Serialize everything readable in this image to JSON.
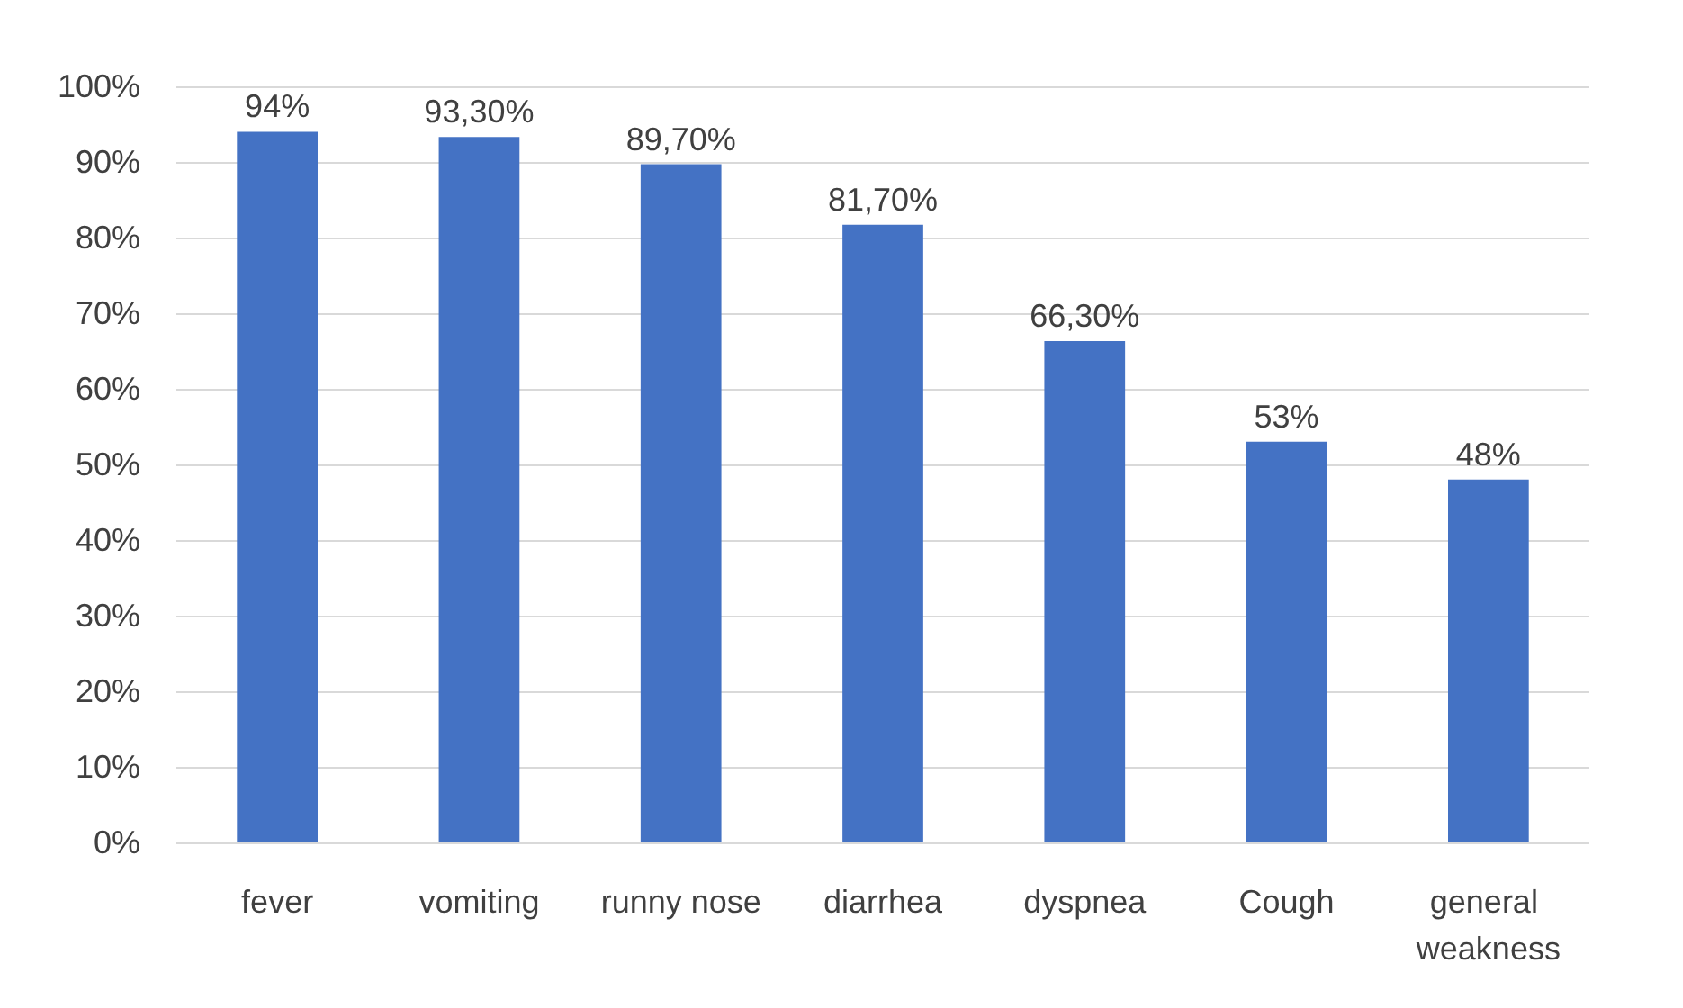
{
  "chart_data": {
    "type": "bar",
    "categories": [
      "fever",
      "vomiting",
      "runny nose",
      "diarrhea",
      "dyspnea",
      "Cough",
      "general weakness"
    ],
    "values": [
      94,
      93.3,
      89.7,
      81.7,
      66.3,
      53,
      48
    ],
    "value_labels": [
      "94%",
      "93,30%",
      "89,70%",
      "81,70%",
      "66,30%",
      "53%",
      "48%"
    ],
    "color": "#4472c4",
    "ylim": [
      0,
      100
    ],
    "yticks": [
      {
        "value": 0,
        "label": "0%"
      },
      {
        "value": 10,
        "label": "10%"
      },
      {
        "value": 20,
        "label": "20%"
      },
      {
        "value": 30,
        "label": "30%"
      },
      {
        "value": 40,
        "label": "40%"
      },
      {
        "value": 50,
        "label": "50%"
      },
      {
        "value": 60,
        "label": "60%"
      },
      {
        "value": 70,
        "label": "70%"
      },
      {
        "value": 80,
        "label": "80%"
      },
      {
        "value": 90,
        "label": "90%"
      },
      {
        "value": 100,
        "label": "100%"
      }
    ],
    "grid": "y"
  }
}
